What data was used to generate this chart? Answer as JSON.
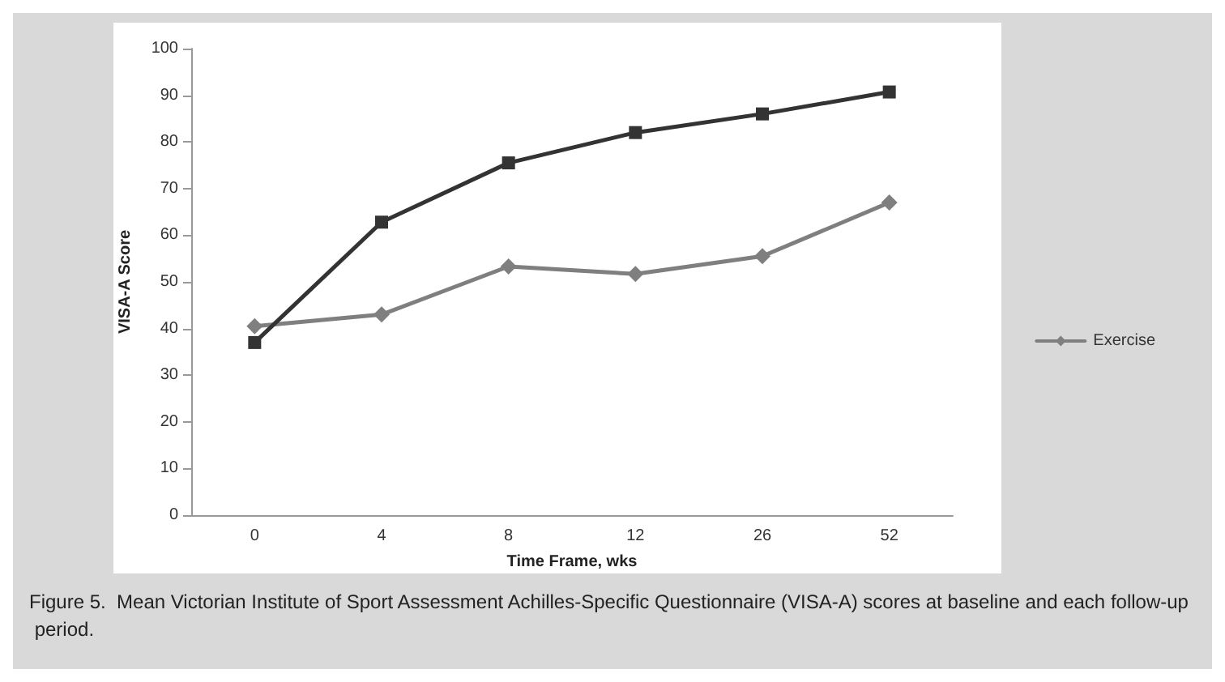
{
  "chart_data": {
    "type": "line",
    "xlabel": "Time Frame, wks",
    "ylabel": "VISA-A Score",
    "categories": [
      "0",
      "4",
      "8",
      "12",
      "26",
      "52"
    ],
    "series": [
      {
        "name": "Exercise",
        "color": "#7f7f7f",
        "marker": "diamond",
        "values": [
          40.5,
          43,
          53.3,
          51.7,
          55.5,
          67
        ]
      },
      {
        "color": "#333333",
        "marker": "square",
        "values": [
          37,
          62.8,
          75.5,
          82,
          86,
          90.7
        ]
      }
    ],
    "ylim": [
      0,
      100
    ],
    "yticks": [
      0,
      10,
      20,
      30,
      40,
      50,
      60,
      70,
      80,
      90,
      100
    ],
    "grid": false,
    "legend": "right",
    "annotations": [
      "Figure 5.  Mean Victorian Institute of Sport Assessment Achilles-Specific Questionnaire (VISA-A) scores at baseline and each follow-up period."
    ]
  }
}
